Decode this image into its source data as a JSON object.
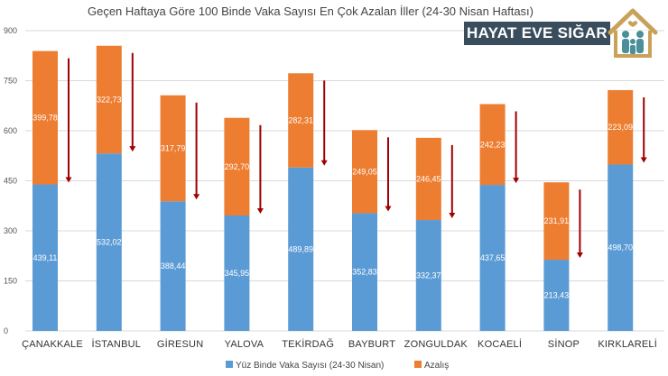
{
  "logo": {
    "text": "HAYAT EVE SIĞAR",
    "banner_color": "#3a4d5c",
    "house_color": "#c9a25a",
    "family_color": "#4a8f9a"
  },
  "colors": {
    "series1": "#5b9bd5",
    "series2": "#ed7d31",
    "arrow": "#a00000",
    "grid": "#d9d9d9"
  },
  "chart_data": {
    "type": "bar",
    "stacked": true,
    "title": "Geçen Haftaya Göre 100 Binde Vaka Sayısı En Çok Azalan İller (24-30 Nisan Haftası)",
    "categories": [
      "ÇANAKKALE",
      "İSTANBUL",
      "GİRESUN",
      "YALOVA",
      "TEKİRDAĞ",
      "BAYBURT",
      "ZONGULDAK",
      "KOCAELİ",
      "SİNOP",
      "KIRKLARELİ"
    ],
    "series": [
      {
        "name": "Yüz Binde Vaka Sayısı (24-30 Nisan)",
        "values": [
          439.11,
          532.02,
          388.44,
          345.95,
          489.89,
          352.83,
          332.37,
          437.65,
          213.43,
          498.7
        ],
        "labels": [
          "439,11",
          "532,02",
          "388,44",
          "345,95",
          "489,89",
          "352,83",
          "332,37",
          "437,65",
          "213,43",
          "498,70"
        ]
      },
      {
        "name": "Azalış",
        "values": [
          399.78,
          322.73,
          317.79,
          292.7,
          282.31,
          249.05,
          246.45,
          242.23,
          231.91,
          223.09
        ],
        "labels": [
          "399,78",
          "322,73",
          "317,79",
          "292,70",
          "282,31",
          "249,05",
          "246,45",
          "242,23",
          "231,91",
          "223,09"
        ]
      }
    ],
    "yticks": [
      "0",
      "150",
      "300",
      "450",
      "600",
      "750",
      "900"
    ],
    "ytick_values": [
      0,
      150,
      300,
      450,
      600,
      750,
      900
    ],
    "ylim": [
      0,
      900
    ],
    "grid": true,
    "legend_position": "bottom"
  }
}
